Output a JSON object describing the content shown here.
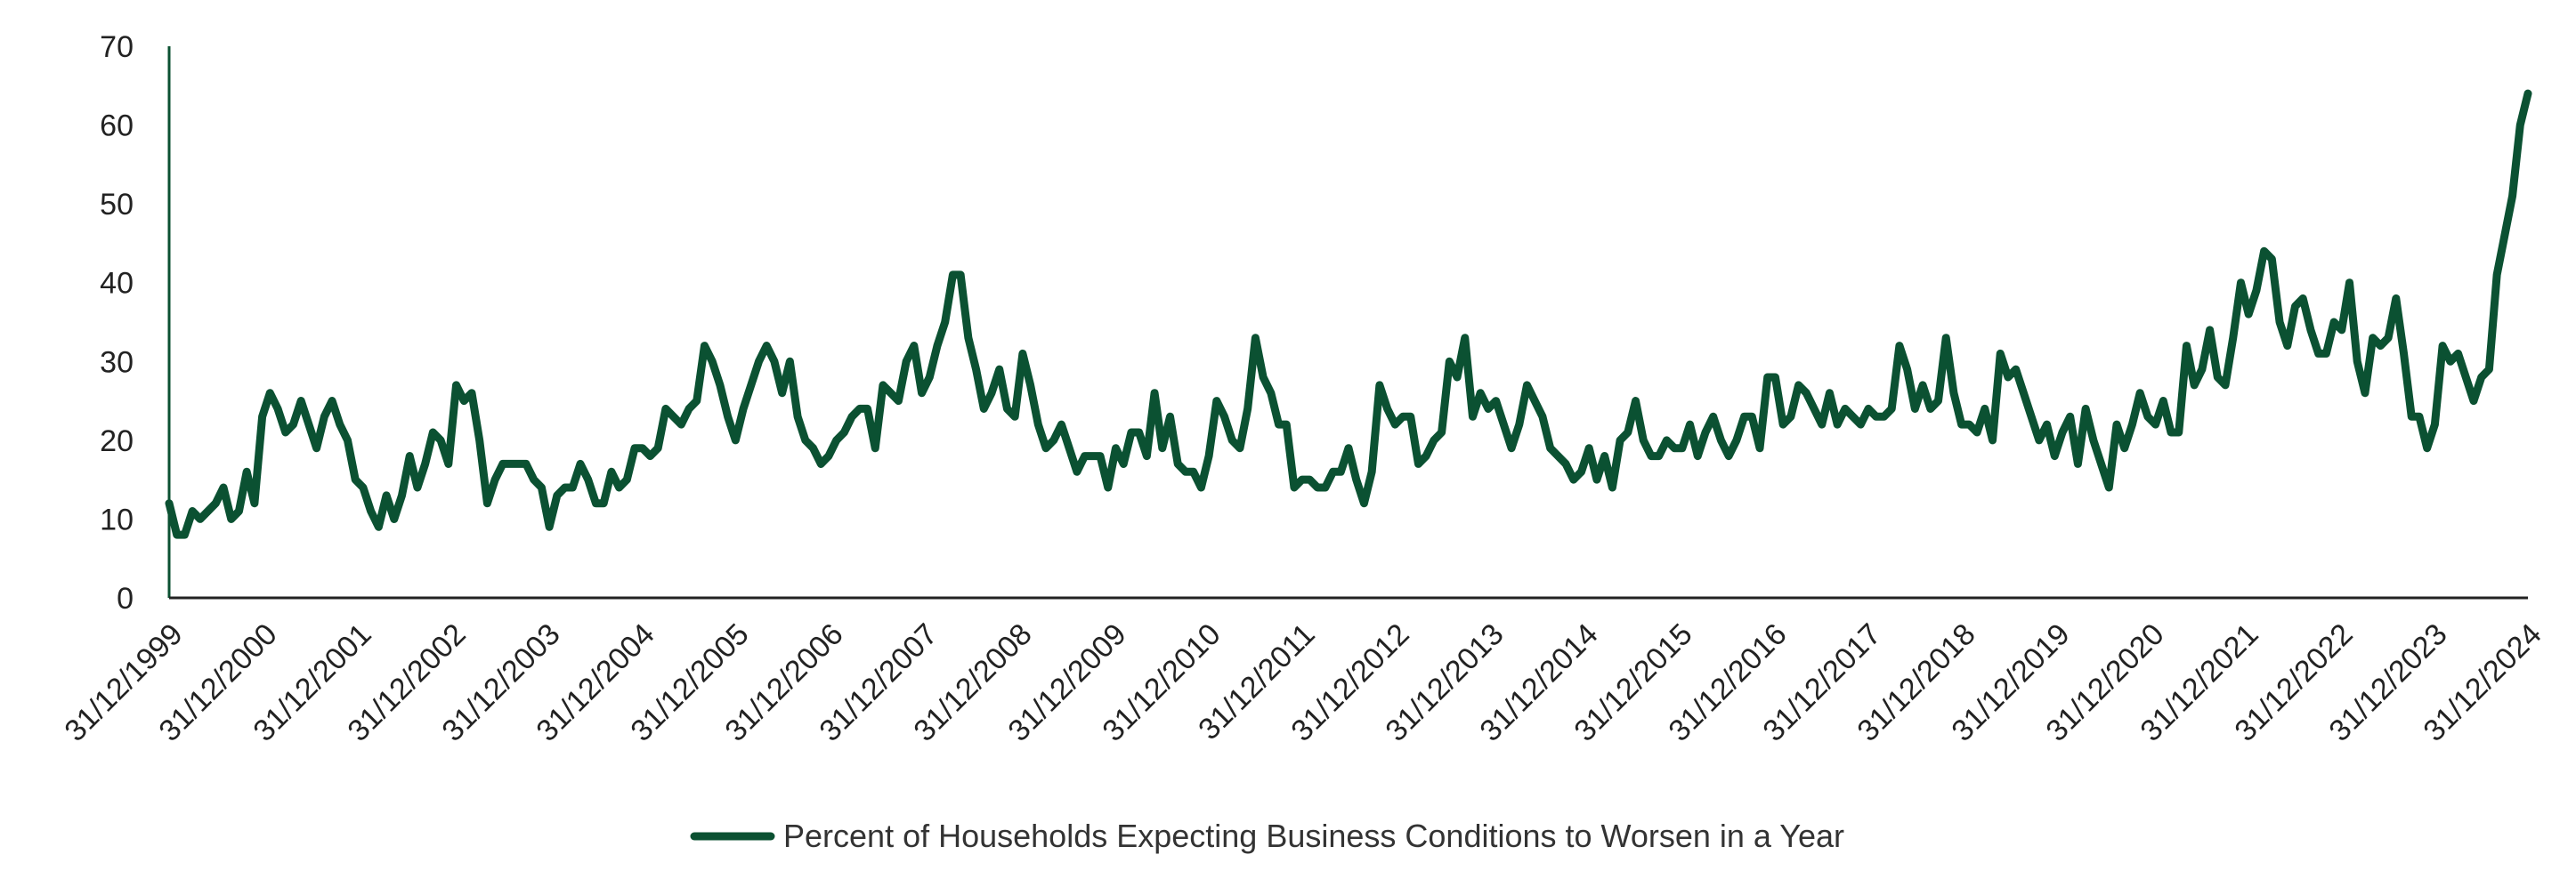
{
  "chart_data": {
    "type": "line",
    "title": "",
    "xlabel": "",
    "ylabel": "",
    "ylim": [
      0,
      70
    ],
    "yticks": [
      "0",
      "10",
      "20",
      "30",
      "40",
      "50",
      "60",
      "70"
    ],
    "x_tick_labels": [
      "31/12/1999",
      "31/12/2000",
      "31/12/2001",
      "31/12/2002",
      "31/12/2003",
      "31/12/2004",
      "31/12/2005",
      "31/12/2006",
      "31/12/2007",
      "31/12/2008",
      "31/12/2009",
      "31/12/2010",
      "31/12/2011",
      "31/12/2012",
      "31/12/2013",
      "31/12/2014",
      "31/12/2015",
      "31/12/2016",
      "31/12/2017",
      "31/12/2018",
      "31/12/2019",
      "31/12/2020",
      "31/12/2021",
      "31/12/2022",
      "31/12/2023",
      "31/12/2024"
    ],
    "x_start": "31/12/1999",
    "x_end": "31/12/2024",
    "grid": false,
    "legend_position": "bottom",
    "colors": {
      "series": "#0b5132",
      "axis": "#0b5132"
    },
    "series": [
      {
        "name": "Percent of Households Expecting Business Conditions to Worsen in a Year",
        "values": [
          12,
          8,
          8,
          11,
          10,
          11,
          12,
          14,
          10,
          11,
          16,
          12,
          23,
          26,
          24,
          21,
          22,
          25,
          22,
          19,
          23,
          25,
          22,
          20,
          15,
          14,
          11,
          9,
          13,
          10,
          13,
          18,
          14,
          17,
          21,
          20,
          17,
          27,
          25,
          26,
          20,
          12,
          15,
          17,
          17,
          17,
          17,
          15,
          14,
          9,
          13,
          14,
          14,
          17,
          15,
          12,
          12,
          16,
          14,
          15,
          19,
          19,
          18,
          19,
          24,
          23,
          22,
          24,
          25,
          32,
          30,
          27,
          23,
          20,
          24,
          27,
          30,
          32,
          30,
          26,
          30,
          23,
          20,
          19,
          17,
          18,
          20,
          21,
          23,
          24,
          24,
          19,
          27,
          26,
          25,
          30,
          32,
          26,
          28,
          32,
          35,
          41,
          41,
          33,
          29,
          24,
          26,
          29,
          24,
          23,
          31,
          27,
          22,
          19,
          20,
          22,
          19,
          16,
          18,
          18,
          18,
          14,
          19,
          17,
          21,
          21,
          18,
          26,
          19,
          23,
          17,
          16,
          16,
          14,
          18,
          25,
          23,
          20,
          19,
          24,
          33,
          28,
          26,
          22,
          22,
          14,
          15,
          15,
          14,
          14,
          16,
          16,
          19,
          15,
          12,
          16,
          27,
          24,
          22,
          23,
          23,
          17,
          18,
          20,
          21,
          30,
          28,
          33,
          23,
          26,
          24,
          25,
          22,
          19,
          22,
          27,
          25,
          23,
          19,
          18,
          17,
          15,
          16,
          19,
          15,
          18,
          14,
          20,
          21,
          25,
          20,
          18,
          18,
          20,
          19,
          19,
          22,
          18,
          21,
          23,
          20,
          18,
          20,
          23,
          23,
          19,
          28,
          28,
          22,
          23,
          27,
          26,
          24,
          22,
          26,
          22,
          24,
          23,
          22,
          24,
          23,
          23,
          24,
          32,
          29,
          24,
          27,
          24,
          25,
          33,
          26,
          22,
          22,
          21,
          24,
          20,
          31,
          28,
          29,
          26,
          23,
          20,
          22,
          18,
          21,
          23,
          17,
          24,
          20,
          17,
          14,
          22,
          19,
          22,
          26,
          23,
          22,
          25,
          21,
          21,
          32,
          27,
          29,
          34,
          28,
          27,
          33,
          40,
          36,
          39,
          44,
          43,
          35,
          32,
          37,
          38,
          34,
          31,
          31,
          35,
          34,
          40,
          30,
          26,
          33,
          32,
          33,
          38,
          31,
          23,
          23,
          19,
          22,
          32,
          30,
          31,
          28,
          25,
          28,
          29,
          41,
          46,
          51,
          60,
          64
        ]
      }
    ]
  }
}
